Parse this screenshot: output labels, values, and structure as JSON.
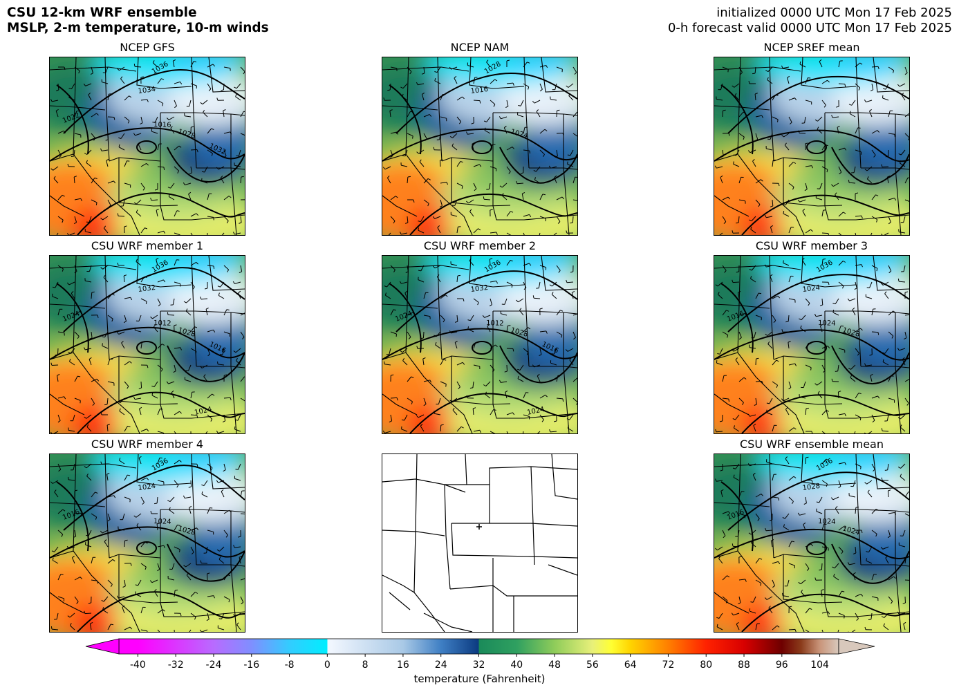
{
  "header": {
    "title_line1": "CSU 12-km WRF ensemble",
    "title_line2": "MSLP, 2-m temperature, 10-m winds",
    "init_line": "initialized 0000 UTC Mon 17 Feb 2025",
    "valid_line": "0-h forecast valid 0000 UTC Mon 17 Feb 2025"
  },
  "panels": [
    {
      "id": "gfs",
      "title": "NCEP GFS",
      "kind": "forecast",
      "labels": [
        "1036",
        "1034",
        "1028",
        "1022",
        "1016",
        "1032"
      ]
    },
    {
      "id": "nam",
      "title": "NCEP NAM",
      "kind": "forecast",
      "labels": [
        "1028",
        "1016",
        "1024"
      ]
    },
    {
      "id": "sref",
      "title": "NCEP SREF mean",
      "kind": "forecast",
      "labels": []
    },
    {
      "id": "m1",
      "title": "CSU WRF member 1",
      "kind": "forecast",
      "labels": [
        "1036",
        "1032",
        "1028",
        "1024",
        "1012",
        "1016",
        "1024"
      ]
    },
    {
      "id": "m2",
      "title": "CSU WRF member 2",
      "kind": "forecast",
      "labels": [
        "1036",
        "1032",
        "1028",
        "1024",
        "1012",
        "1016",
        "1024"
      ]
    },
    {
      "id": "m3",
      "title": "CSU WRF member 3",
      "kind": "forecast",
      "labels": [
        "1036",
        "1024",
        "1028",
        "1016",
        "1024"
      ]
    },
    {
      "id": "m4",
      "title": "CSU WRF member 4",
      "kind": "forecast",
      "labels": [
        "1036",
        "1024",
        "1028",
        "1016",
        "1024"
      ]
    },
    {
      "id": "domain",
      "title": "",
      "kind": "domain-map",
      "labels": []
    },
    {
      "id": "ens",
      "title": "CSU WRF ensemble mean",
      "kind": "forecast",
      "labels": [
        "1036",
        "1028",
        "1024",
        "1016",
        "1024"
      ]
    }
  ],
  "colorbar": {
    "label": "temperature (Fahrenheit)",
    "ticks": [
      "-40",
      "-32",
      "-24",
      "-16",
      "-8",
      "0",
      "8",
      "16",
      "24",
      "32",
      "40",
      "48",
      "56",
      "64",
      "72",
      "80",
      "88",
      "96",
      "104"
    ],
    "min": -44,
    "max": 108,
    "colors": {
      "magenta": "#ff00ff",
      "cyan": "#00eeff",
      "white": "#f4f8ff",
      "navy": "#0b3a80",
      "teal": "#1a8a5a",
      "yellow": "#ffff33",
      "red": "#ff2200",
      "darkred": "#6e0000",
      "beige": "#d8c8bc"
    }
  }
}
